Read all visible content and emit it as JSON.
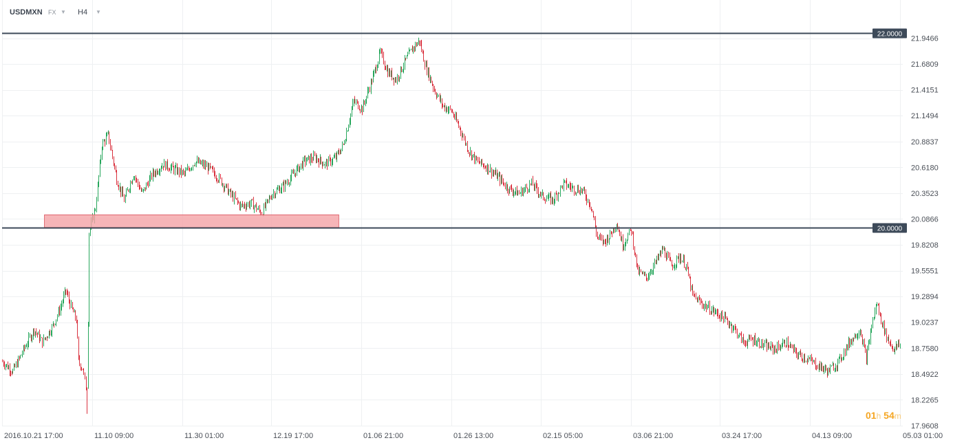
{
  "header": {
    "symbol": "USDMXN",
    "market": "FX",
    "timeframe": "H4"
  },
  "countdown": {
    "hours": "01",
    "hours_unit": "h",
    "minutes": "54",
    "minutes_unit": "m"
  },
  "colors": {
    "up": "#26a65b",
    "down": "#d9303d",
    "level_line": "#3d4a59",
    "zone_fill": "#f4a3a6",
    "zone_stroke": "#d9505a",
    "grid": "#eef0f2",
    "axis_text": "#4a4f57"
  },
  "chart_data": {
    "type": "candlestick",
    "symbol": "USDMXN",
    "timeframe": "H4",
    "ylim": [
      17.9608,
      22.0
    ],
    "y_ticks": [
      "21.9466",
      "21.6809",
      "21.4151",
      "21.1494",
      "20.8837",
      "20.6180",
      "20.3523",
      "20.0866",
      "19.8208",
      "19.5551",
      "19.2894",
      "19.0237",
      "18.7580",
      "18.4922",
      "18.2265",
      "17.9608"
    ],
    "x_ticks": [
      "2016.10.21  17:00",
      "11.10  09:00",
      "11.30  01:00",
      "12.19  17:00",
      "01.06  21:00",
      "01.26  13:00",
      "02.15  05:00",
      "03.06  21:00",
      "03.24  17:00",
      "04.13  09:00",
      "05.03  01:00"
    ],
    "grid": true,
    "horizontal_levels": [
      {
        "label": "22.0000",
        "value": 22.0
      },
      {
        "label": "20.0000",
        "value": 20.0
      }
    ],
    "zones": [
      {
        "y_from": 20.0,
        "y_to": 20.13,
        "x_from_index": 40,
        "x_to_index": 318
      }
    ],
    "close_path": [
      [
        0,
        18.62
      ],
      [
        10,
        18.52
      ],
      [
        22,
        18.78
      ],
      [
        30,
        18.95
      ],
      [
        38,
        18.82
      ],
      [
        48,
        18.99
      ],
      [
        55,
        19.18
      ],
      [
        60,
        19.35
      ],
      [
        66,
        19.15
      ],
      [
        70,
        19.05
      ],
      [
        72,
        18.62
      ],
      [
        76,
        18.55
      ],
      [
        79,
        18.35
      ],
      [
        80,
        18.15
      ],
      [
        82,
        19.95
      ],
      [
        88,
        20.2
      ],
      [
        94,
        20.85
      ],
      [
        100,
        20.95
      ],
      [
        108,
        20.5
      ],
      [
        115,
        20.28
      ],
      [
        124,
        20.55
      ],
      [
        132,
        20.35
      ],
      [
        142,
        20.55
      ],
      [
        152,
        20.65
      ],
      [
        162,
        20.6
      ],
      [
        172,
        20.55
      ],
      [
        182,
        20.68
      ],
      [
        194,
        20.62
      ],
      [
        205,
        20.5
      ],
      [
        215,
        20.35
      ],
      [
        225,
        20.22
      ],
      [
        235,
        20.25
      ],
      [
        245,
        20.15
      ],
      [
        255,
        20.35
      ],
      [
        265,
        20.42
      ],
      [
        275,
        20.55
      ],
      [
        285,
        20.68
      ],
      [
        295,
        20.72
      ],
      [
        305,
        20.65
      ],
      [
        315,
        20.72
      ],
      [
        322,
        20.85
      ],
      [
        332,
        21.3
      ],
      [
        340,
        21.22
      ],
      [
        350,
        21.55
      ],
      [
        357,
        21.8
      ],
      [
        364,
        21.6
      ],
      [
        372,
        21.52
      ],
      [
        380,
        21.7
      ],
      [
        388,
        21.85
      ],
      [
        394,
        21.92
      ],
      [
        400,
        21.65
      ],
      [
        408,
        21.42
      ],
      [
        416,
        21.25
      ],
      [
        424,
        21.2
      ],
      [
        432,
        21.02
      ],
      [
        440,
        20.8
      ],
      [
        448,
        20.68
      ],
      [
        458,
        20.62
      ],
      [
        468,
        20.52
      ],
      [
        478,
        20.4
      ],
      [
        488,
        20.35
      ],
      [
        500,
        20.45
      ],
      [
        510,
        20.32
      ],
      [
        520,
        20.28
      ],
      [
        530,
        20.45
      ],
      [
        540,
        20.4
      ],
      [
        548,
        20.38
      ],
      [
        556,
        20.22
      ],
      [
        562,
        19.9
      ],
      [
        568,
        19.85
      ],
      [
        574,
        19.92
      ],
      [
        580,
        20.05
      ],
      [
        586,
        19.82
      ],
      [
        594,
        19.98
      ],
      [
        600,
        19.55
      ],
      [
        608,
        19.48
      ],
      [
        616,
        19.62
      ],
      [
        624,
        19.78
      ],
      [
        632,
        19.6
      ],
      [
        640,
        19.7
      ],
      [
        646,
        19.6
      ],
      [
        652,
        19.3
      ],
      [
        660,
        19.22
      ],
      [
        670,
        19.15
      ],
      [
        680,
        19.08
      ],
      [
        690,
        18.98
      ],
      [
        700,
        18.82
      ],
      [
        710,
        18.85
      ],
      [
        720,
        18.78
      ],
      [
        730,
        18.75
      ],
      [
        740,
        18.82
      ],
      [
        750,
        18.7
      ],
      [
        760,
        18.65
      ],
      [
        770,
        18.58
      ],
      [
        780,
        18.52
      ],
      [
        790,
        18.62
      ],
      [
        800,
        18.82
      ],
      [
        810,
        18.95
      ],
      [
        816,
        18.65
      ],
      [
        822,
        19.05
      ],
      [
        826,
        19.22
      ],
      [
        830,
        19.05
      ],
      [
        836,
        18.85
      ],
      [
        842,
        18.75
      ],
      [
        848,
        18.8
      ]
    ],
    "candle_count": 849
  }
}
